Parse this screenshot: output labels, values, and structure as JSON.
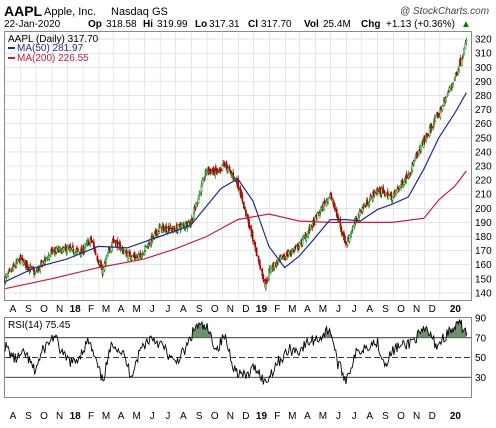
{
  "header": {
    "symbol": "AAPL",
    "company": "Apple, Inc.",
    "exchange": "Nasdaq GS",
    "watermark": "@ StockCharts.com",
    "date": "22-Jan-2020",
    "op_label": "Op",
    "op": "318.58",
    "hi_label": "Hi",
    "hi": "319.99",
    "lo_label": "Lo",
    "lo": "317.31",
    "cl_label": "Cl",
    "cl": "317.70",
    "vol_label": "Vol",
    "vol": "25.4M",
    "chg_label": "Chg",
    "chg": "+1.13 (+0.36%)",
    "up_marker": "▲"
  },
  "legend": {
    "price": "AAPL (Daily) 317.70",
    "ma50": "MA(50) 281.97",
    "ma200": "MA(200) 226.55",
    "rsi": "RSI(14) 75.45"
  },
  "colors": {
    "up": "#0a7a0a",
    "down": "#b00000",
    "ma50": "#1f2f8a",
    "ma200": "#c41e3a",
    "rsi_line": "#000000",
    "rsi_fill": "#6f8f6f",
    "grid": "#d6d6d6",
    "frame": "#8a8a8a"
  },
  "chart_data": [
    {
      "type": "candlestick",
      "title": "AAPL (Daily)",
      "x_range": [
        "2017-08-01",
        "2020-01-31"
      ],
      "ylim": [
        135,
        325
      ],
      "y_ticks": [
        140,
        150,
        160,
        170,
        180,
        190,
        200,
        210,
        220,
        230,
        240,
        250,
        260,
        270,
        280,
        290,
        300,
        310,
        320
      ],
      "x_labels": [
        "A",
        "S",
        "O",
        "N",
        "18",
        "F",
        "M",
        "A",
        "M",
        "J",
        "J",
        "A",
        "S",
        "O",
        "N",
        "D",
        "19",
        "F",
        "M",
        "A",
        "M",
        "J",
        "J",
        "A",
        "S",
        "O",
        "N",
        "D",
        "20"
      ],
      "grid": true,
      "legend_position": "top-left",
      "close_path": [
        [
          "2017-08-01",
          150
        ],
        [
          "2017-08-31",
          164
        ],
        [
          "2017-09-29",
          154
        ],
        [
          "2017-10-31",
          169
        ],
        [
          "2017-11-30",
          171
        ],
        [
          "2017-12-29",
          169
        ],
        [
          "2018-01-16",
          178
        ],
        [
          "2018-02-08",
          155
        ],
        [
          "2018-02-28",
          178
        ],
        [
          "2018-03-29",
          167
        ],
        [
          "2018-04-20",
          165
        ],
        [
          "2018-05-31",
          186
        ],
        [
          "2018-06-29",
          185
        ],
        [
          "2018-07-31",
          190
        ],
        [
          "2018-08-31",
          227
        ],
        [
          "2018-09-28",
          225
        ],
        [
          "2018-10-03",
          232
        ],
        [
          "2018-10-31",
          218
        ],
        [
          "2018-11-30",
          178
        ],
        [
          "2018-12-24",
          146
        ],
        [
          "2019-01-02",
          157
        ],
        [
          "2019-01-31",
          166
        ],
        [
          "2019-02-28",
          173
        ],
        [
          "2019-03-29",
          190
        ],
        [
          "2019-04-30",
          210
        ],
        [
          "2019-05-31",
          175
        ],
        [
          "2019-06-28",
          198
        ],
        [
          "2019-07-31",
          213
        ],
        [
          "2019-08-30",
          208
        ],
        [
          "2019-09-30",
          224
        ],
        [
          "2019-10-31",
          248
        ],
        [
          "2019-11-29",
          267
        ],
        [
          "2019-12-31",
          293
        ],
        [
          "2020-01-22",
          317.7
        ]
      ],
      "ma50": [
        [
          "2017-08-01",
          148
        ],
        [
          "2017-09-29",
          158
        ],
        [
          "2017-11-30",
          164
        ],
        [
          "2018-01-31",
          173
        ],
        [
          "2018-03-29",
          172
        ],
        [
          "2018-05-31",
          180
        ],
        [
          "2018-07-31",
          188
        ],
        [
          "2018-09-28",
          214
        ],
        [
          "2018-10-31",
          221
        ],
        [
          "2018-11-30",
          205
        ],
        [
          "2018-12-31",
          173
        ],
        [
          "2019-01-31",
          158
        ],
        [
          "2019-02-28",
          166
        ],
        [
          "2019-03-29",
          178
        ],
        [
          "2019-04-30",
          192
        ],
        [
          "2019-05-31",
          192
        ],
        [
          "2019-06-28",
          191
        ],
        [
          "2019-07-31",
          199
        ],
        [
          "2019-08-30",
          203
        ],
        [
          "2019-09-30",
          208
        ],
        [
          "2019-10-31",
          228
        ],
        [
          "2019-11-29",
          250
        ],
        [
          "2019-12-31",
          268
        ],
        [
          "2020-01-22",
          281.97
        ]
      ],
      "ma200": [
        [
          "2017-08-01",
          143
        ],
        [
          "2017-10-31",
          150
        ],
        [
          "2018-01-31",
          158
        ],
        [
          "2018-04-30",
          164
        ],
        [
          "2018-06-29",
          171
        ],
        [
          "2018-08-31",
          180
        ],
        [
          "2018-10-31",
          192
        ],
        [
          "2018-12-31",
          196
        ],
        [
          "2019-02-28",
          191
        ],
        [
          "2019-04-30",
          190
        ],
        [
          "2019-06-28",
          190
        ],
        [
          "2019-08-30",
          190
        ],
        [
          "2019-10-31",
          193
        ],
        [
          "2019-11-29",
          206
        ],
        [
          "2019-12-31",
          216
        ],
        [
          "2020-01-22",
          226.55
        ]
      ]
    },
    {
      "type": "line",
      "title": "RSI(14)",
      "ylim": [
        10,
        90
      ],
      "y_ticks": [
        30,
        50,
        70,
        90
      ],
      "reference_lines": [
        70,
        50,
        30
      ],
      "x_labels": [
        "A",
        "S",
        "O",
        "N",
        "18",
        "F",
        "M",
        "A",
        "M",
        "J",
        "J",
        "A",
        "S",
        "O",
        "N",
        "D",
        "19",
        "F",
        "M",
        "A",
        "M",
        "J",
        "J",
        "A",
        "S",
        "O",
        "N",
        "D",
        "20"
      ],
      "values": [
        [
          "2017-08-01",
          62
        ],
        [
          "2017-08-20",
          48
        ],
        [
          "2017-09-10",
          54
        ],
        [
          "2017-09-28",
          36
        ],
        [
          "2017-10-15",
          58
        ],
        [
          "2017-11-05",
          72
        ],
        [
          "2017-11-25",
          50
        ],
        [
          "2017-12-15",
          44
        ],
        [
          "2018-01-12",
          67
        ],
        [
          "2018-02-08",
          26
        ],
        [
          "2018-02-28",
          66
        ],
        [
          "2018-03-20",
          54
        ],
        [
          "2018-04-05",
          32
        ],
        [
          "2018-04-25",
          60
        ],
        [
          "2018-05-15",
          71
        ],
        [
          "2018-06-05",
          62
        ],
        [
          "2018-06-28",
          44
        ],
        [
          "2018-07-20",
          57
        ],
        [
          "2018-08-10",
          82
        ],
        [
          "2018-08-31",
          80
        ],
        [
          "2018-09-20",
          58
        ],
        [
          "2018-10-05",
          72
        ],
        [
          "2018-10-25",
          38
        ],
        [
          "2018-11-15",
          30
        ],
        [
          "2018-12-05",
          41
        ],
        [
          "2018-12-24",
          24
        ],
        [
          "2019-01-15",
          44
        ],
        [
          "2019-02-10",
          58
        ],
        [
          "2019-02-28",
          57
        ],
        [
          "2019-03-20",
          66
        ],
        [
          "2019-04-10",
          70
        ],
        [
          "2019-04-30",
          80
        ],
        [
          "2019-05-15",
          44
        ],
        [
          "2019-05-31",
          28
        ],
        [
          "2019-06-20",
          54
        ],
        [
          "2019-07-10",
          62
        ],
        [
          "2019-07-31",
          66
        ],
        [
          "2019-08-15",
          44
        ],
        [
          "2019-09-05",
          60
        ],
        [
          "2019-09-25",
          62
        ],
        [
          "2019-10-15",
          70
        ],
        [
          "2019-11-05",
          78
        ],
        [
          "2019-11-25",
          62
        ],
        [
          "2019-12-15",
          74
        ],
        [
          "2019-12-31",
          80
        ],
        [
          "2020-01-10",
          84
        ],
        [
          "2020-01-22",
          75.45
        ]
      ]
    }
  ]
}
